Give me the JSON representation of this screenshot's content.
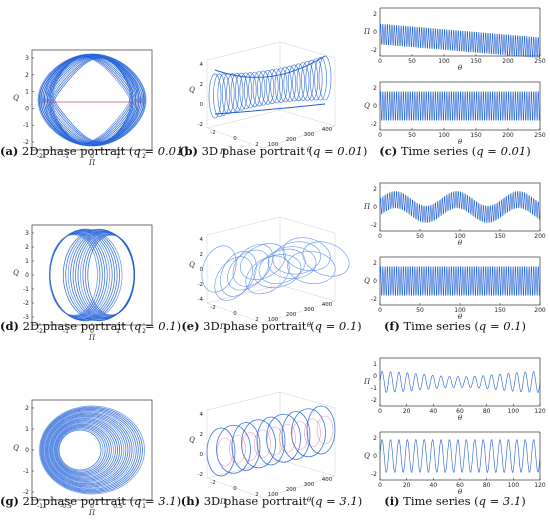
{
  "figure": {
    "rows": [
      {
        "q": "0.01",
        "panels": [
          {
            "kind": "2d",
            "letter": "(a)",
            "text": "2D phase portrait",
            "qlabel": "q = 0.01",
            "x_ticks": [
              "-2",
              "-1",
              "0",
              "1",
              "2"
            ],
            "y_ticks": [
              "3",
              "2",
              "1",
              "0",
              "-1",
              "-2"
            ],
            "xlabel": "Π",
            "ylabel": "Q"
          },
          {
            "kind": "3d",
            "letter": "(b)",
            "text": "3D phase portrait",
            "qlabel": "q = 0.01",
            "z_ticks": [
              "4",
              "2",
              "0",
              "-2"
            ],
            "theta_ticks": [
              "100",
              "200",
              "300",
              "400"
            ],
            "pi_ticks": [
              "-2",
              "0",
              "2"
            ],
            "zlabel": "Q",
            "pilabel": "Π",
            "thetalabel": "θ"
          },
          {
            "kind": "ts",
            "letter": "(c)",
            "text": "Time series",
            "qlabel": "q = 0.01",
            "top": {
              "ylabel": "Π",
              "y_ticks": [
                "2",
                "0",
                "-2"
              ],
              "x_ticks": [
                "0",
                "50",
                "100",
                "150",
                "200",
                "250"
              ],
              "xlabel": "θ"
            },
            "bottom": {
              "ylabel": "Q",
              "y_ticks": [
                "2",
                "0",
                "-2"
              ],
              "x_ticks": [
                "0",
                "50",
                "100",
                "150",
                "200",
                "250"
              ],
              "xlabel": "θ"
            }
          }
        ]
      },
      {
        "q": "0.1",
        "panels": [
          {
            "kind": "2d",
            "letter": "(d)",
            "text": "2D phase portrait",
            "qlabel": "q = 0.1",
            "x_ticks": [
              "-2",
              "-1",
              "0",
              "1",
              "2"
            ],
            "y_ticks": [
              "3",
              "2",
              "1",
              "0",
              "-1",
              "-2",
              "-3"
            ],
            "xlabel": "Π",
            "ylabel": "Q"
          },
          {
            "kind": "3d",
            "letter": "(e)",
            "text": "3D phase portrait",
            "qlabel": "q = 0.1",
            "z_ticks": [
              "4",
              "2",
              "0",
              "-2",
              "-4"
            ],
            "theta_ticks": [
              "100",
              "200",
              "300",
              "400"
            ],
            "pi_ticks": [
              "-2",
              "0",
              "2"
            ],
            "zlabel": "Q",
            "pilabel": "Π",
            "thetalabel": "θ"
          },
          {
            "kind": "ts",
            "letter": "(f)",
            "text": "Time series",
            "qlabel": "q = 0.1",
            "top": {
              "ylabel": "Π",
              "y_ticks": [
                "2",
                "0",
                "-2"
              ],
              "x_ticks": [
                "0",
                "50",
                "100",
                "150",
                "200"
              ],
              "xlabel": "θ"
            },
            "bottom": {
              "ylabel": "Q",
              "y_ticks": [
                "2",
                "0",
                "-2"
              ],
              "x_ticks": [
                "0",
                "50",
                "100",
                "150",
                "200"
              ],
              "xlabel": "θ"
            }
          }
        ]
      },
      {
        "q": "3.1",
        "panels": [
          {
            "kind": "2d",
            "letter": "(g)",
            "text": "2D phase portrait",
            "qlabel": "q = 3.1",
            "x_ticks": [
              "-1",
              "-0.5",
              "0",
              "0.5",
              "1"
            ],
            "y_ticks": [
              "2",
              "1",
              "0",
              "-1",
              "-2"
            ],
            "xlabel": "Π",
            "ylabel": "Q"
          },
          {
            "kind": "3d",
            "letter": "(h)",
            "text": "3D phase portrait",
            "qlabel": "q = 3.1",
            "z_ticks": [
              "4",
              "2",
              "0",
              "-2"
            ],
            "theta_ticks": [
              "100",
              "200",
              "300",
              "400"
            ],
            "pi_ticks": [
              "-2",
              "0",
              "2"
            ],
            "zlabel": "Q",
            "pilabel": "Π",
            "thetalabel": "θ"
          },
          {
            "kind": "ts",
            "letter": "(i)",
            "text": "Time series",
            "qlabel": "q = 3.1",
            "top": {
              "ylabel": "Π",
              "y_ticks": [
                "1",
                "0",
                "-1",
                "-2"
              ],
              "x_ticks": [
                "0",
                "20",
                "40",
                "60",
                "80",
                "100",
                "120"
              ],
              "xlabel": "θ"
            },
            "bottom": {
              "ylabel": "Q",
              "y_ticks": [
                "2",
                "0",
                "-2"
              ],
              "x_ticks": [
                "0",
                "20",
                "40",
                "60",
                "80",
                "100",
                "120"
              ],
              "xlabel": "θ"
            }
          }
        ]
      }
    ],
    "colors": {
      "curve": "#1f5fd6",
      "curve_light": "#5b8be8",
      "accent": "#c23a6a",
      "axis": "#333333",
      "box": "#888888"
    }
  }
}
